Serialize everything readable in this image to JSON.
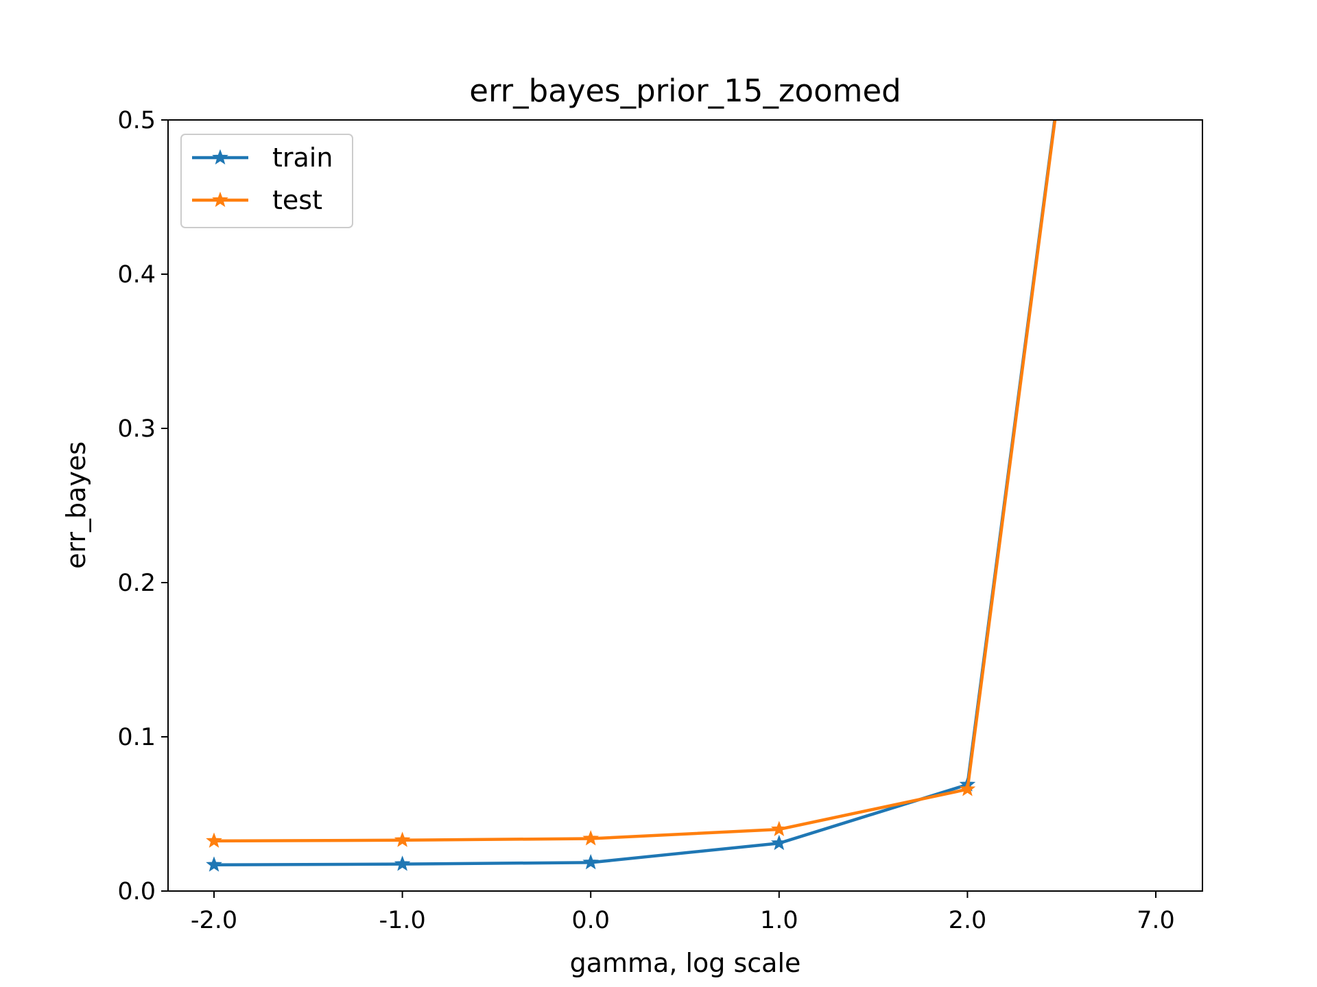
{
  "chart_data": {
    "type": "line",
    "title": "err_bayes_prior_15_zoomed",
    "xlabel": "gamma, log scale",
    "ylabel": "err_bayes",
    "categories": [
      "-2.0",
      "-1.0",
      "0.0",
      "1.0",
      "2.0",
      "7.0"
    ],
    "ylim": [
      0,
      0.5
    ],
    "yticks": [
      "0.0",
      "0.1",
      "0.2",
      "0.3",
      "0.4",
      "0.5"
    ],
    "grid": false,
    "legend_position": "top-left",
    "series": [
      {
        "name": "train",
        "color": "#1f77b4",
        "values": [
          0.017,
          0.0175,
          0.0185,
          0.031,
          0.069,
          1.0
        ]
      },
      {
        "name": "test",
        "color": "#ff7f0e",
        "values": [
          0.0325,
          0.033,
          0.034,
          0.04,
          0.066,
          1.0
        ]
      }
    ]
  }
}
